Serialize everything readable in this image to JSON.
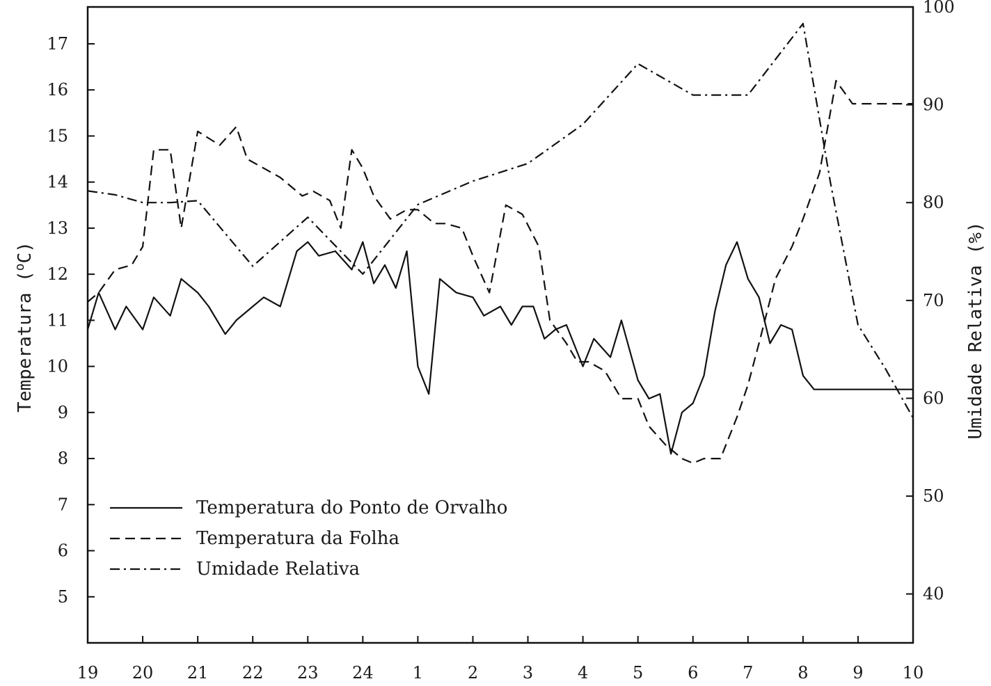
{
  "chart_data": {
    "type": "line",
    "title": "",
    "xlabel": "",
    "ylabel": "Temperatura (°C)",
    "ylabel_parts": [
      "Temperatura (",
      "o",
      "C)"
    ],
    "y2label": "Umidade Relativa (%)",
    "xlim": [
      0,
      15
    ],
    "ylim": [
      4,
      17.8
    ],
    "y2lim": [
      35,
      100
    ],
    "grid": false,
    "legend_position": "bottom-left",
    "x_ticks": [
      {
        "pos": 0,
        "label": "19"
      },
      {
        "pos": 1,
        "label": "20"
      },
      {
        "pos": 2,
        "label": "21"
      },
      {
        "pos": 3,
        "label": "22"
      },
      {
        "pos": 4,
        "label": "23"
      },
      {
        "pos": 5,
        "label": "24"
      },
      {
        "pos": 6,
        "label": "1"
      },
      {
        "pos": 7,
        "label": "2"
      },
      {
        "pos": 8,
        "label": "3"
      },
      {
        "pos": 9,
        "label": "4"
      },
      {
        "pos": 10,
        "label": "5"
      },
      {
        "pos": 11,
        "label": "6"
      },
      {
        "pos": 12,
        "label": "7"
      },
      {
        "pos": 13,
        "label": "8"
      },
      {
        "pos": 14,
        "label": "9"
      },
      {
        "pos": 15,
        "label": "10"
      }
    ],
    "y_ticks": [
      {
        "value": 5,
        "label": "5"
      },
      {
        "value": 6,
        "label": "6"
      },
      {
        "value": 7,
        "label": "7"
      },
      {
        "value": 8,
        "label": "8"
      },
      {
        "value": 9,
        "label": "9"
      },
      {
        "value": 10,
        "label": "10"
      },
      {
        "value": 11,
        "label": "11"
      },
      {
        "value": 12,
        "label": "12"
      },
      {
        "value": 13,
        "label": "13"
      },
      {
        "value": 14,
        "label": "14"
      },
      {
        "value": 15,
        "label": "15"
      },
      {
        "value": 16,
        "label": "16"
      },
      {
        "value": 17,
        "label": "17"
      }
    ],
    "y2_ticks": [
      {
        "value": 40,
        "label": "40"
      },
      {
        "value": 50,
        "label": "50"
      },
      {
        "value": 60,
        "label": "60"
      },
      {
        "value": 70,
        "label": "70"
      },
      {
        "value": 80,
        "label": "80"
      },
      {
        "value": 90,
        "label": "90"
      },
      {
        "value": 100,
        "label": "100"
      }
    ],
    "series": [
      {
        "name": "Temperatura do Ponto de Orvalho",
        "axis": "left",
        "dash": "solid",
        "x": [
          0,
          0.2,
          0.5,
          0.7,
          1.0,
          1.2,
          1.5,
          1.7,
          2.0,
          2.2,
          2.5,
          2.7,
          3.0,
          3.2,
          3.5,
          3.8,
          4.0,
          4.2,
          4.5,
          4.8,
          5.0,
          5.2,
          5.4,
          5.6,
          5.8,
          6.0,
          6.2,
          6.4,
          6.7,
          7.0,
          7.2,
          7.5,
          7.7,
          7.9,
          8.1,
          8.3,
          8.5,
          8.7,
          9.0,
          9.2,
          9.5,
          9.7,
          10.0,
          10.2,
          10.4,
          10.6,
          10.8,
          11.0,
          11.2,
          11.4,
          11.6,
          11.8,
          12.0,
          12.2,
          12.4,
          12.6,
          12.8,
          13.0,
          13.2,
          13.5,
          13.7,
          14.0,
          14.2,
          14.4,
          14.6,
          14.8,
          15.0
        ],
        "values": [
          10.8,
          11.6,
          10.8,
          11.3,
          10.8,
          11.5,
          11.1,
          11.9,
          11.6,
          11.3,
          10.7,
          11.0,
          11.3,
          11.5,
          11.3,
          12.5,
          12.7,
          12.4,
          12.5,
          12.1,
          12.7,
          11.8,
          12.2,
          11.7,
          12.5,
          10.0,
          9.4,
          11.9,
          11.6,
          11.5,
          11.1,
          11.3,
          10.9,
          11.3,
          11.3,
          10.6,
          10.8,
          10.9,
          10.0,
          10.6,
          10.2,
          11.0,
          9.7,
          9.3,
          9.4,
          8.1,
          9.0,
          9.2,
          9.8,
          11.2,
          12.2,
          12.7,
          11.9,
          11.5,
          10.5,
          10.9,
          10.8,
          9.8,
          9.5,
          9.5,
          9.5,
          9.5,
          9.5,
          9.5,
          9.5,
          9.5,
          9.5
        ]
      },
      {
        "name": "Temperatura da Folha",
        "axis": "left",
        "dash": "dashed",
        "x": [
          0,
          0.2,
          0.5,
          0.8,
          1.0,
          1.2,
          1.5,
          1.7,
          2.0,
          2.4,
          2.7,
          2.9,
          3.2,
          3.5,
          3.9,
          4.1,
          4.4,
          4.6,
          4.8,
          5.0,
          5.2,
          5.5,
          5.8,
          6.0,
          6.3,
          6.5,
          6.8,
          7.0,
          7.3,
          7.6,
          7.9,
          8.2,
          8.4,
          8.7,
          8.9,
          9.1,
          9.4,
          9.7,
          10.0,
          10.2,
          10.5,
          10.8,
          11.0,
          11.2,
          11.5,
          11.8,
          12.0,
          12.2,
          12.5,
          12.8,
          13.0,
          13.3,
          13.6,
          13.9,
          14.1,
          14.4,
          14.6,
          14.8,
          15.0
        ],
        "values": [
          11.4,
          11.6,
          12.1,
          12.2,
          12.6,
          14.7,
          14.7,
          13.0,
          15.1,
          14.8,
          15.2,
          14.5,
          14.3,
          14.1,
          13.7,
          13.8,
          13.6,
          13.0,
          14.7,
          14.3,
          13.7,
          13.2,
          13.4,
          13.4,
          13.1,
          13.1,
          13.0,
          12.4,
          11.6,
          13.5,
          13.3,
          12.6,
          11.0,
          10.5,
          10.1,
          10.1,
          9.9,
          9.3,
          9.3,
          8.7,
          8.3,
          8.0,
          7.9,
          8.0,
          8.0,
          8.9,
          9.6,
          10.5,
          11.9,
          12.6,
          13.2,
          14.2,
          16.2,
          15.7,
          15.7,
          15.7,
          15.7,
          15.7,
          15.7
        ]
      },
      {
        "name": "Umidade Relativa",
        "axis": "right",
        "dash": "dashdot",
        "x": [
          0,
          0.5,
          1.0,
          1.5,
          2.0,
          3.0,
          4.0,
          5.0,
          6.0,
          7.0,
          8.0,
          9.0,
          10.0,
          11.0,
          12.0,
          13.0,
          13.5,
          14.0,
          14.5,
          15.0
        ],
        "values": [
          81.2,
          80.8,
          80.0,
          80.0,
          80.2,
          73.5,
          78.5,
          72.7,
          79.8,
          82.2,
          84.0,
          88.0,
          94.2,
          91.0,
          91.0,
          98.3,
          82.0,
          67.5,
          63.0,
          58.0
        ]
      }
    ]
  }
}
